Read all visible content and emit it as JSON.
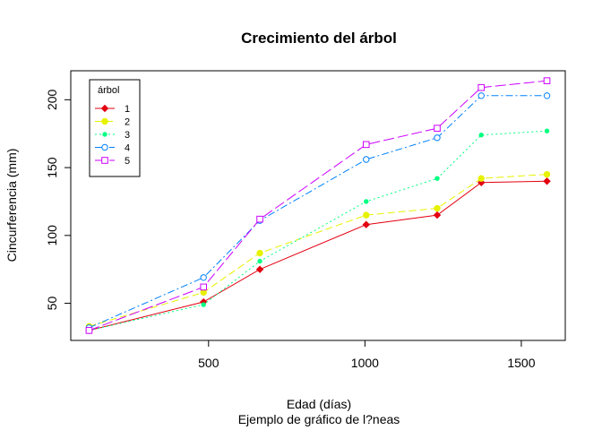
{
  "chart_data": {
    "type": "line",
    "title": "Crecimiento del árbol",
    "xlabel": "Edad (días)",
    "subtitle": "Ejemplo de gráfico de l?neas",
    "ylabel": "Cincurferencia (mm)",
    "xlim": [
      118,
      1582
    ],
    "ylim": [
      30,
      214
    ],
    "xticks": [
      500,
      1000,
      1500
    ],
    "yticks": [
      50,
      100,
      150,
      200
    ],
    "legend": {
      "title": "árbol",
      "position": "top-left"
    },
    "x": [
      118,
      484,
      664,
      1004,
      1231,
      1372,
      1582
    ],
    "series": [
      {
        "name": "1",
        "color": "#e3000f",
        "dash": "",
        "marker": "diamond-filled",
        "values": [
          30,
          51,
          75,
          108,
          115,
          139,
          140
        ]
      },
      {
        "name": "2",
        "color": "#e6f200",
        "dash": "8,4",
        "marker": "circle-filled",
        "values": [
          33,
          58,
          87,
          115,
          120,
          142,
          145
        ]
      },
      {
        "name": "3",
        "color": "#00ff80",
        "dash": "2,3",
        "marker": "dot",
        "values": [
          30,
          49,
          81,
          125,
          142,
          174,
          177
        ]
      },
      {
        "name": "4",
        "color": "#0080ff",
        "dash": "8,3,2,3",
        "marker": "circle-open",
        "values": [
          32,
          69,
          111,
          156,
          172,
          203,
          203
        ]
      },
      {
        "name": "5",
        "color": "#cc00ff",
        "dash": "12,4",
        "marker": "square-open",
        "values": [
          30,
          62,
          112,
          167,
          179,
          209,
          214
        ]
      }
    ]
  }
}
